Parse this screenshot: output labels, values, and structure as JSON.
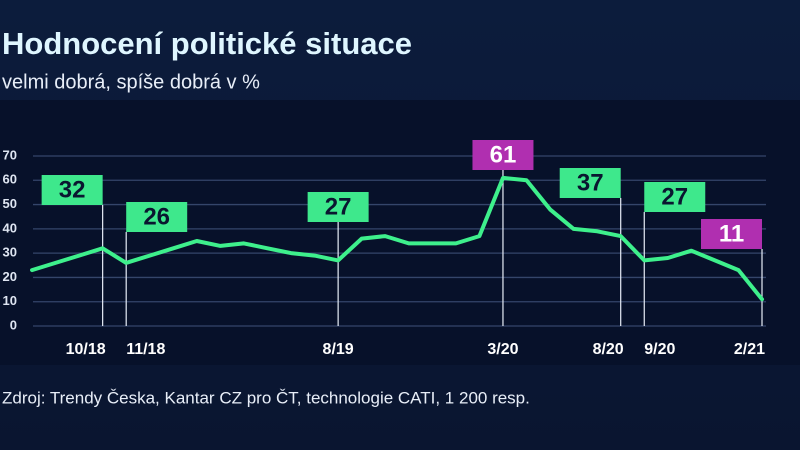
{
  "chart_data": {
    "type": "line",
    "title": "Hodnocení politické situace",
    "subtitle": "velmi dobrá, spíše dobrá v %",
    "source": "Zdroj: Trendy Česka, Kantar CZ pro ČT, technologie CATI, 1 200 resp.",
    "categories": [
      null,
      null,
      null,
      "10/18",
      "11/18",
      null,
      null,
      null,
      null,
      null,
      null,
      null,
      null,
      "8/19",
      null,
      null,
      null,
      null,
      null,
      null,
      "3/20",
      null,
      null,
      null,
      null,
      "8/20",
      "9/20",
      null,
      null,
      null,
      null,
      "2/21"
    ],
    "values": [
      23,
      26,
      29,
      32,
      26,
      29,
      32,
      35,
      33,
      34,
      32,
      30,
      29,
      27,
      36,
      37,
      34,
      34,
      34,
      37,
      61,
      60,
      48,
      40,
      39,
      37,
      27,
      28,
      31,
      27,
      23,
      11
    ],
    "color": "#3ef08c",
    "ylim": [
      0,
      70
    ],
    "yticks": [
      0,
      10,
      20,
      30,
      40,
      50,
      60,
      70
    ],
    "grid": true,
    "labeled_points": [
      3,
      4,
      13,
      20,
      25,
      26,
      31
    ],
    "label_color": "#3ee88c",
    "highlight_points": [
      20,
      31
    ],
    "highlight_color": "#b02fb0"
  }
}
